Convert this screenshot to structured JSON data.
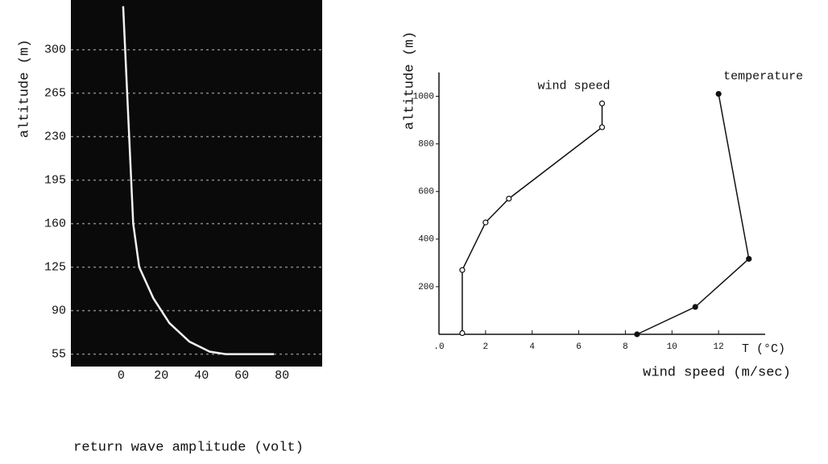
{
  "chart_data": [
    {
      "type": "line",
      "background": "#0a0a0a",
      "grid": true,
      "axes": false,
      "x_label": "return wave amplitude (volt)",
      "y_label": "altitude (m)",
      "xlim": [
        -25,
        100
      ],
      "ylim": [
        45,
        340
      ],
      "xticks": [
        0,
        20,
        40,
        60,
        80
      ],
      "yticks": [
        55,
        90,
        125,
        160,
        195,
        230,
        265,
        300
      ],
      "series": [
        {
          "color": "#f2f2f2",
          "marker": "none",
          "x": [
            1,
            2,
            3,
            4,
            5,
            6,
            9,
            16,
            24,
            34,
            44,
            52,
            76
          ],
          "values": [
            335,
            300,
            265,
            230,
            195,
            160,
            125,
            100,
            80,
            65,
            57,
            55,
            55
          ]
        }
      ]
    },
    {
      "type": "line",
      "background": "#ffffff",
      "grid": false,
      "axes": true,
      "x_label": "wind speed (m/sec)",
      "x_label2": "T (°C)",
      "y_label": "altitude (m)",
      "xlim": [
        0,
        14
      ],
      "ylim": [
        0,
        1100
      ],
      "xticks": [
        {
          "value": 0,
          "label": ".0"
        },
        2,
        4,
        6,
        8,
        10,
        12
      ],
      "yticks": [
        200,
        400,
        600,
        800,
        1000
      ],
      "series": [
        {
          "name": "wind speed",
          "color": "#111111",
          "marker": "open",
          "x": [
            1,
            1,
            2,
            3,
            7,
            7
          ],
          "values": [
            5,
            270,
            470,
            570,
            870,
            970
          ]
        },
        {
          "name": "temperature",
          "color": "#111111",
          "marker": "filled",
          "x": [
            8.5,
            11,
            13.3,
            12
          ],
          "values": [
            0,
            115,
            317,
            1010
          ]
        }
      ]
    }
  ]
}
